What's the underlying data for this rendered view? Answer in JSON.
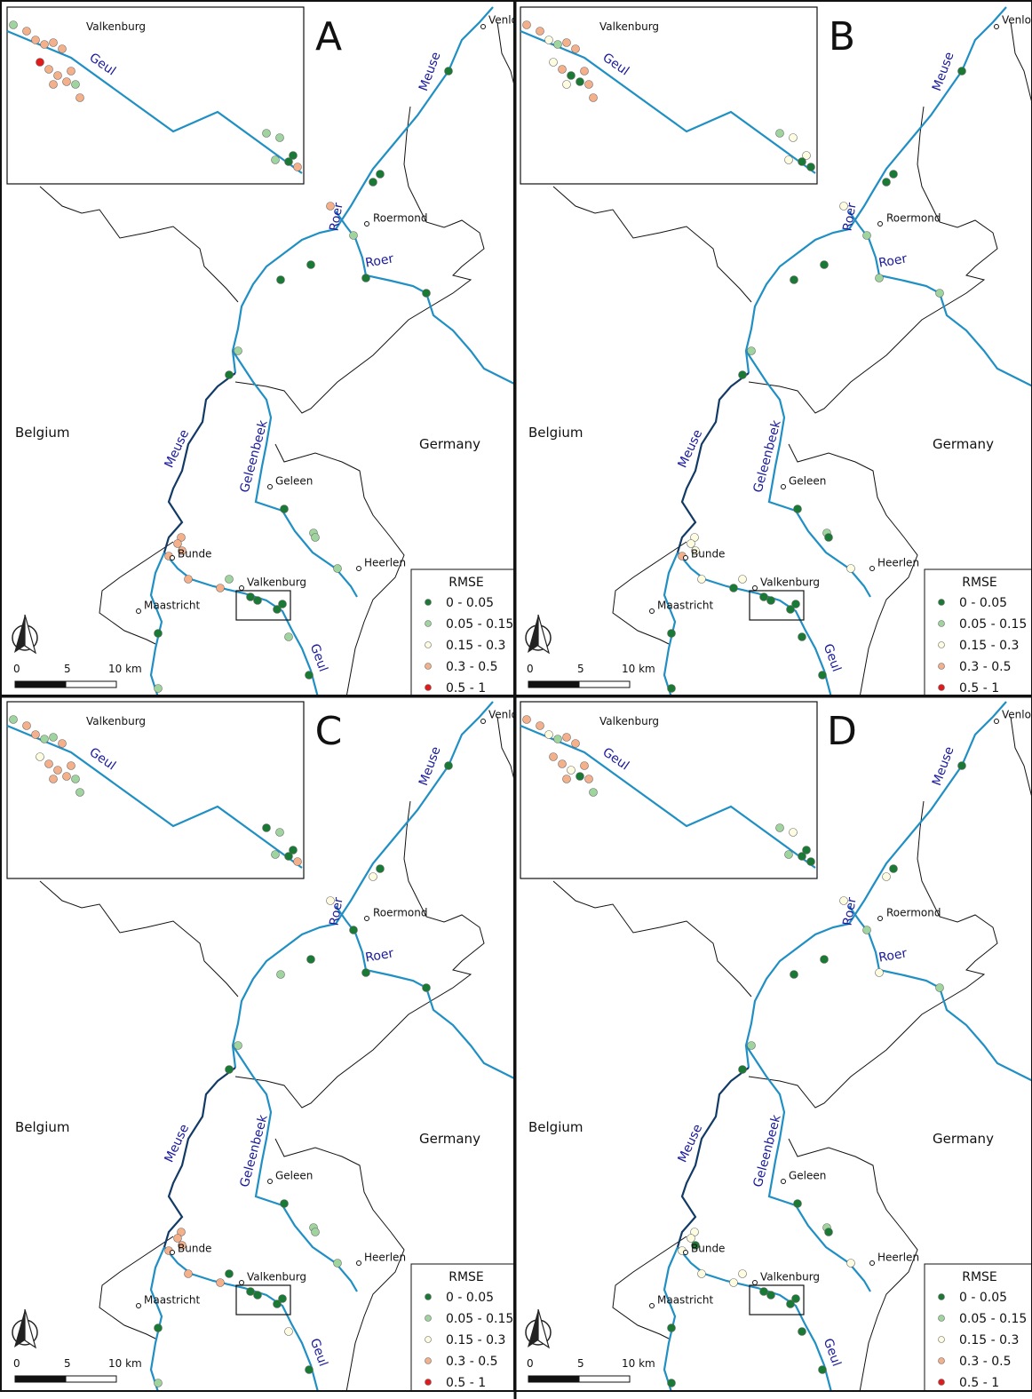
{
  "panels": [
    {
      "label": "A",
      "inset": {
        "place": "Valkenburg",
        "river": "Geul"
      },
      "places": [
        "Venlo",
        "Roermond",
        "Geleen",
        "Heerlen",
        "Bunde",
        "Valkenburg",
        "Maastricht"
      ],
      "rivers": [
        "Meuse",
        "Roer",
        "Roer",
        "Meuse",
        "Geleenbeek",
        "Geul"
      ],
      "countries": [
        "Belgium",
        "Germany"
      ],
      "legend": {
        "title": "RMSE",
        "items": [
          {
            "label": "0 - 0.05",
            "color": "#1a7a35"
          },
          {
            "label": "0.05 - 0.15",
            "color": "#9fd49f"
          },
          {
            "label": "0.15 - 0.3",
            "color": "#fdfbe0"
          },
          {
            "label": "0.3 - 0.5",
            "color": "#f4b08a"
          },
          {
            "label": "0.5 - 1",
            "color": "#e31a1c"
          }
        ]
      },
      "scale": [
        "0",
        "5",
        "10 km"
      ]
    },
    {
      "label": "B",
      "inset": {
        "place": "Valkenburg",
        "river": "Geul"
      },
      "places": [
        "Venlo",
        "Roermond",
        "Geleen",
        "Heerlen",
        "Bunde",
        "Valkenburg",
        "Maastricht"
      ],
      "rivers": [
        "Meuse",
        "Roer",
        "Roer",
        "Meuse",
        "Geleenbeek",
        "Geul"
      ],
      "countries": [
        "Belgium",
        "Germany"
      ],
      "legend": {
        "title": "RMSE",
        "items": [
          {
            "label": "0 - 0.05",
            "color": "#1a7a35"
          },
          {
            "label": "0.05 - 0.15",
            "color": "#9fd49f"
          },
          {
            "label": "0.15 - 0.3",
            "color": "#fdfbe0"
          },
          {
            "label": "0.3 - 0.5",
            "color": "#f4b08a"
          },
          {
            "label": "0.5 - 1",
            "color": "#e31a1c"
          }
        ]
      },
      "scale": [
        "0",
        "5",
        "10 km"
      ]
    },
    {
      "label": "C",
      "inset": {
        "place": "Valkenburg",
        "river": "Geul"
      },
      "places": [
        "Venlo",
        "Roermond",
        "Geleen",
        "Heerlen",
        "Bunde",
        "Valkenburg",
        "Maastricht"
      ],
      "rivers": [
        "Meuse",
        "Roer",
        "Roer",
        "Meuse",
        "Geleenbeek",
        "Geul"
      ],
      "countries": [
        "Belgium",
        "Germany"
      ],
      "legend": {
        "title": "RMSE",
        "items": [
          {
            "label": "0 - 0.05",
            "color": "#1a7a35"
          },
          {
            "label": "0.05 - 0.15",
            "color": "#9fd49f"
          },
          {
            "label": "0.15 - 0.3",
            "color": "#fdfbe0"
          },
          {
            "label": "0.3 - 0.5",
            "color": "#f4b08a"
          },
          {
            "label": "0.5 - 1",
            "color": "#e31a1c"
          }
        ]
      },
      "scale": [
        "0",
        "5",
        "10 km"
      ]
    },
    {
      "label": "D",
      "inset": {
        "place": "Valkenburg",
        "river": "Geul"
      },
      "places": [
        "Venlo",
        "Roermond",
        "Geleen",
        "Heerlen",
        "Bunde",
        "Valkenburg",
        "Maastricht"
      ],
      "rivers": [
        "Meuse",
        "Roer",
        "Roer",
        "Meuse",
        "Geleenbeek",
        "Geul"
      ],
      "countries": [
        "Belgium",
        "Germany"
      ],
      "legend": {
        "title": "RMSE",
        "items": [
          {
            "label": "0 - 0.05",
            "color": "#1a7a35"
          },
          {
            "label": "0.05 - 0.15",
            "color": "#9fd49f"
          },
          {
            "label": "0.15 - 0.3",
            "color": "#fdfbe0"
          },
          {
            "label": "0.3 - 0.5",
            "color": "#f4b08a"
          },
          {
            "label": "0.5 - 1",
            "color": "#e31a1c"
          }
        ]
      },
      "scale": [
        "0",
        "5",
        "10 km"
      ]
    }
  ]
}
